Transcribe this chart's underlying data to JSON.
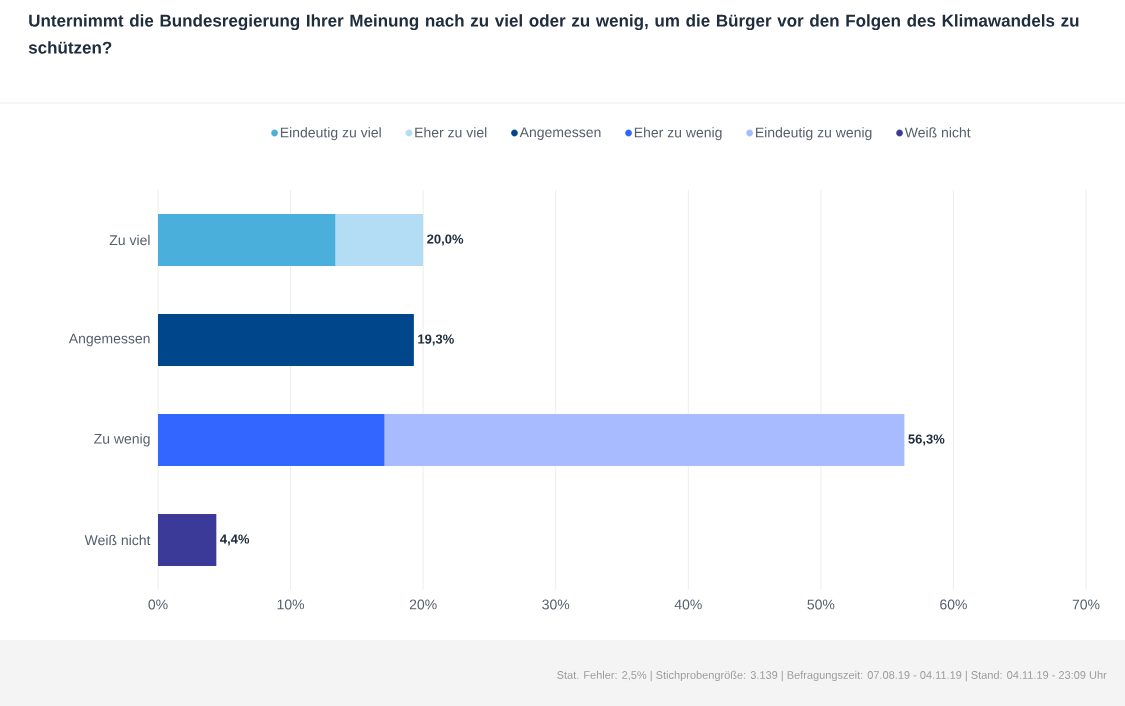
{
  "chart_data": {
    "type": "bar",
    "orientation": "horizontal",
    "stacked": true,
    "title": "Unternimmt die Bundesregierung Ihrer Meinung nach zu viel oder zu wenig, um die Bürger vor den Folgen des Klimawandels zu schützen?",
    "categories": [
      "Zu viel",
      "Angemessen",
      "Zu wenig",
      "Weiß nicht"
    ],
    "series": [
      {
        "name": "Eindeutig zu viel",
        "color": "#4bafdc",
        "values": [
          13.4,
          null,
          null,
          null
        ]
      },
      {
        "name": "Eher zu viel",
        "color": "#b3dcf5",
        "values": [
          6.6,
          null,
          null,
          null
        ]
      },
      {
        "name": "Angemessen",
        "color": "#00468a",
        "values": [
          null,
          19.3,
          null,
          null
        ]
      },
      {
        "name": "Eher zu wenig",
        "color": "#3366ff",
        "values": [
          null,
          null,
          17.1,
          null
        ]
      },
      {
        "name": "Eindeutig zu wenig",
        "color": "#a8bbff",
        "values": [
          null,
          null,
          39.2,
          null
        ]
      },
      {
        "name": "Weiß nicht",
        "color": "#3b3a99",
        "values": [
          null,
          null,
          null,
          4.4
        ]
      }
    ],
    "totals": [
      "20,0%",
      "19,3%",
      "56,3%",
      "4,4%"
    ],
    "xlim": [
      0,
      70
    ],
    "xticks": [
      {
        "value": 0,
        "label": "0%"
      },
      {
        "value": 10,
        "label": "10%"
      },
      {
        "value": 20,
        "label": "20%"
      },
      {
        "value": 30,
        "label": "30%"
      },
      {
        "value": 40,
        "label": "40%"
      },
      {
        "value": 50,
        "label": "50%"
      },
      {
        "value": 60,
        "label": "60%"
      },
      {
        "value": 70,
        "label": "70%"
      }
    ],
    "grid": "x",
    "legend": "top",
    "annotations": [
      "Stat. Fehler: 2,5% | Stichprobengröße: 3.139 | Befragungszeit: 07.08.19 - 04.11.19 | Stand: 04.11.19 - 23:09 Uhr"
    ]
  }
}
